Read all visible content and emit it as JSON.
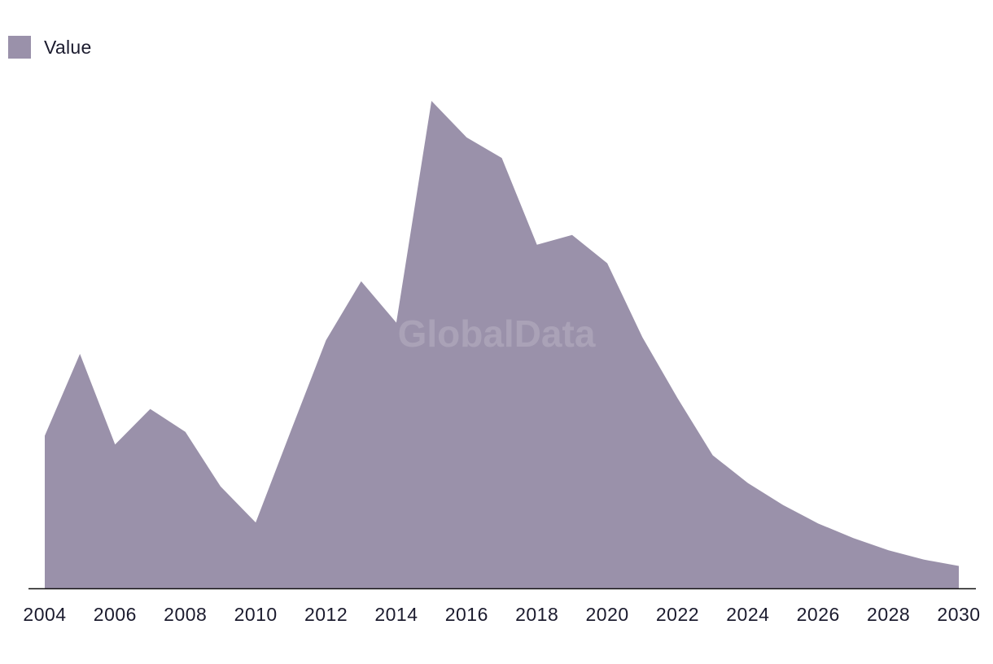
{
  "legend": {
    "label": "Value"
  },
  "watermark": "GlobalData",
  "colors": {
    "area": "#9a91aa",
    "axis": "#111111",
    "text": "#1b1b2e"
  },
  "chart_data": {
    "type": "area",
    "x": [
      2004,
      2005,
      2006,
      2007,
      2008,
      2009,
      2010,
      2011,
      2012,
      2013,
      2014,
      2015,
      2016,
      2017,
      2018,
      2019,
      2020,
      2021,
      2022,
      2023,
      2024,
      2025,
      2026,
      2027,
      2028,
      2029,
      2030
    ],
    "series": [
      {
        "name": "Value",
        "values": [
          31.3,
          48.1,
          29.5,
          36.8,
          32.1,
          20.9,
          13.5,
          32.3,
          50.9,
          63.0,
          54.5,
          100.0,
          92.5,
          88.3,
          70.5,
          72.5,
          66.7,
          51.5,
          39.0,
          27.3,
          21.6,
          17.1,
          13.3,
          10.3,
          7.8,
          5.9,
          4.6
        ]
      }
    ],
    "xticks": [
      "2004",
      "2006",
      "2008",
      "2010",
      "2012",
      "2014",
      "2016",
      "2018",
      "2020",
      "2022",
      "2024",
      "2026",
      "2028",
      "2030"
    ],
    "ylim": [
      0,
      100
    ],
    "grid": false,
    "legend_position": "top-left"
  }
}
